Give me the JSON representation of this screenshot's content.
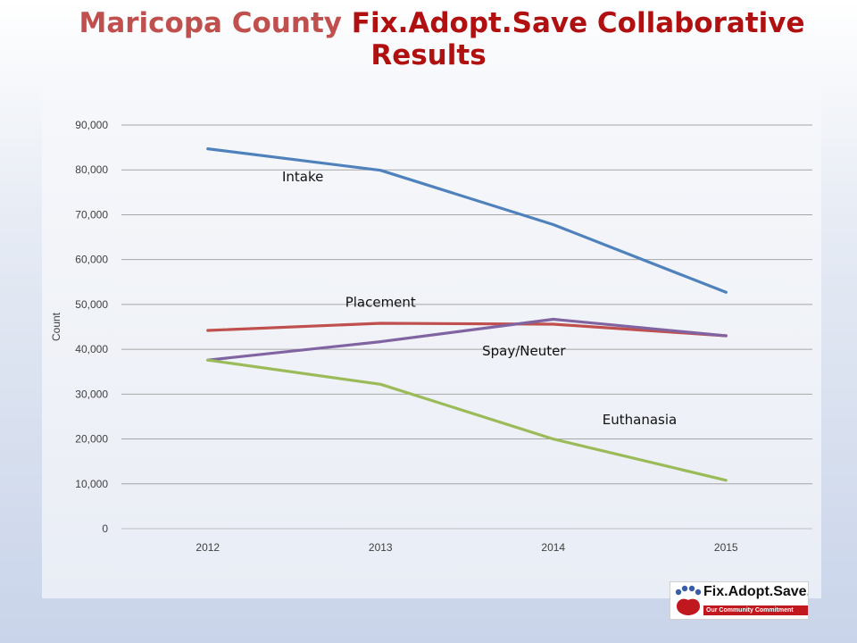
{
  "title": {
    "part1": "Maricopa County",
    "part2": "Fix.Adopt.Save Collaborative Results"
  },
  "logo": {
    "text": "Fix.Adopt.Save.",
    "tagline": "Our Community Commitment"
  },
  "colors": {
    "title_primary": "#c0504d",
    "title_secondary": "#b01010",
    "intake": "#4f81bd",
    "placement": "#c0504d",
    "spay_neuter": "#8064a2",
    "euthanasia": "#9bbb59"
  },
  "chart_data": {
    "type": "line",
    "title": "",
    "xlabel": "",
    "ylabel": "Count",
    "categories": [
      "2012",
      "2013",
      "2014",
      "2015"
    ],
    "ylim": [
      0,
      90000
    ],
    "yticks": [
      0,
      10000,
      20000,
      30000,
      40000,
      50000,
      60000,
      70000,
      80000,
      90000
    ],
    "ytick_labels": [
      "0",
      "10,000",
      "20,000",
      "30,000",
      "40,000",
      "50,000",
      "60,000",
      "70,000",
      "80,000",
      "90,000"
    ],
    "grid": true,
    "legend": "inline labels",
    "series": [
      {
        "name": "Intake",
        "color": "#4f81bd",
        "values": [
          84700,
          79900,
          67800,
          52700
        ]
      },
      {
        "name": "Placement",
        "color": "#c0504d",
        "values": [
          44200,
          45800,
          45600,
          43000
        ]
      },
      {
        "name": "Spay/Neuter",
        "color": "#8064a2",
        "values": [
          37600,
          41700,
          46700,
          43000
        ]
      },
      {
        "name": "Euthanasia",
        "color": "#9bbb59",
        "values": [
          37600,
          32200,
          20000,
          10800
        ]
      }
    ]
  }
}
